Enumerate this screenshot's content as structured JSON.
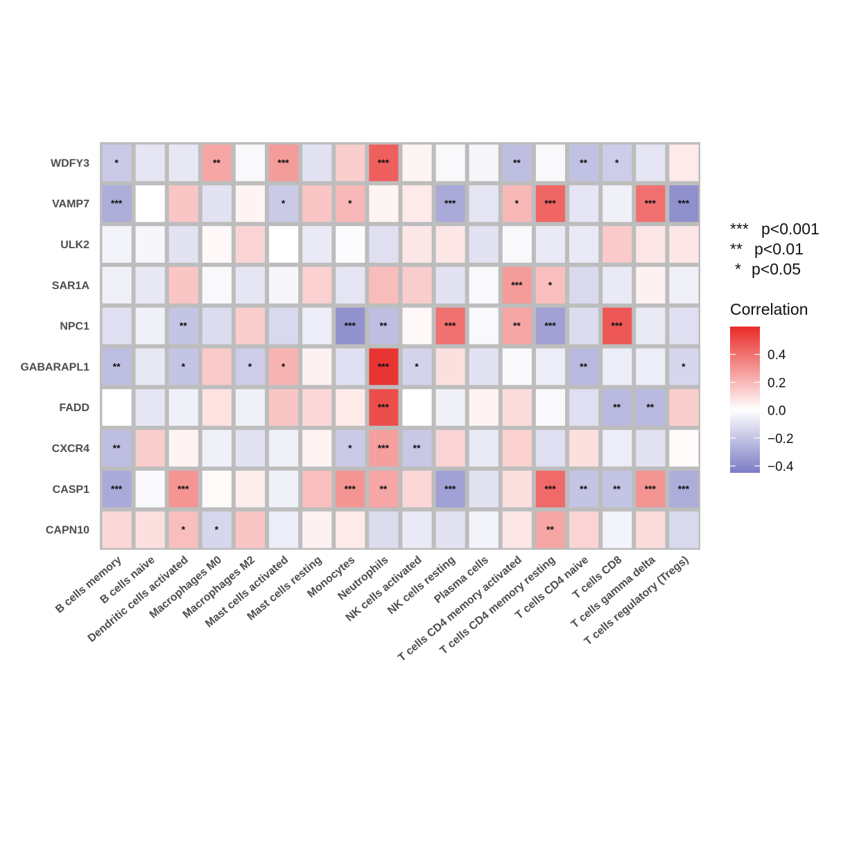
{
  "chart_data": {
    "type": "heatmap",
    "title": "",
    "xlabel": "",
    "ylabel": "",
    "rows": [
      "WDFY3",
      "VAMP7",
      "ULK2",
      "SAR1A",
      "NPC1",
      "GABARAPL1",
      "FADD",
      "CXCR4",
      "CASP1",
      "CAPN10"
    ],
    "columns": [
      "B cells memory",
      "B cells naive",
      "Dendritic cells activated",
      "Macrophages M0",
      "Macrophages M2",
      "Mast cells activated",
      "Mast cells resting",
      "Monocytes",
      "Neutrophils",
      "NK cells activated",
      "NK cells resting",
      "Plasma cells",
      "T cells CD4 memory activated",
      "T cells CD4 memory resting",
      "T cells CD4 naive",
      "T cells CD8",
      "T cells gamma delta",
      "T cells regulatory (Tregs)"
    ],
    "values": [
      [
        -0.18,
        -0.09,
        -0.08,
        0.25,
        -0.02,
        0.28,
        -0.1,
        0.14,
        0.45,
        0.03,
        -0.02,
        -0.03,
        -0.22,
        -0.02,
        -0.21,
        -0.17,
        -0.09,
        0.06
      ],
      [
        -0.28,
        0.0,
        0.16,
        -0.1,
        0.03,
        -0.18,
        0.16,
        0.2,
        0.03,
        0.06,
        -0.29,
        -0.09,
        0.2,
        0.43,
        -0.09,
        -0.05,
        0.4,
        -0.38
      ],
      [
        -0.04,
        -0.03,
        -0.1,
        0.02,
        0.12,
        0.0,
        -0.07,
        -0.01,
        -0.11,
        0.07,
        0.07,
        -0.1,
        -0.02,
        -0.07,
        -0.07,
        0.15,
        0.07,
        0.07
      ],
      [
        -0.05,
        -0.08,
        0.16,
        -0.02,
        -0.09,
        -0.03,
        0.13,
        -0.09,
        0.19,
        0.14,
        -0.1,
        -0.02,
        0.28,
        0.18,
        -0.13,
        -0.07,
        0.04,
        -0.05
      ],
      [
        -0.11,
        -0.05,
        -0.2,
        -0.12,
        0.14,
        -0.13,
        -0.06,
        -0.37,
        -0.22,
        0.02,
        0.4,
        -0.02,
        0.25,
        -0.32,
        -0.12,
        0.47,
        -0.07,
        -0.11
      ],
      [
        -0.22,
        -0.08,
        -0.2,
        0.15,
        -0.17,
        0.21,
        0.04,
        -0.11,
        0.57,
        -0.15,
        0.09,
        -0.1,
        -0.02,
        -0.06,
        -0.24,
        -0.06,
        -0.06,
        -0.14
      ],
      [
        0.0,
        -0.09,
        -0.05,
        0.08,
        -0.05,
        0.16,
        0.11,
        0.06,
        0.5,
        0.0,
        -0.05,
        0.03,
        0.1,
        -0.02,
        -0.11,
        -0.24,
        -0.24,
        0.14
      ],
      [
        -0.22,
        0.14,
        0.03,
        -0.05,
        -0.1,
        -0.05,
        0.03,
        -0.18,
        0.27,
        -0.19,
        0.12,
        -0.07,
        0.13,
        -0.11,
        0.09,
        -0.06,
        -0.1,
        0.01
      ],
      [
        -0.29,
        -0.02,
        0.3,
        0.01,
        0.05,
        -0.05,
        0.18,
        0.3,
        0.25,
        0.11,
        -0.32,
        -0.1,
        0.09,
        0.42,
        -0.2,
        -0.2,
        0.3,
        -0.28
      ],
      [
        0.11,
        0.09,
        0.18,
        -0.14,
        0.16,
        -0.06,
        0.04,
        0.06,
        -0.12,
        -0.07,
        -0.1,
        -0.04,
        0.07,
        0.25,
        0.12,
        -0.04,
        0.1,
        -0.13
      ]
    ],
    "significance": [
      [
        "*",
        "",
        "",
        "**",
        "",
        "***",
        "",
        "",
        "***",
        "",
        "",
        "",
        "**",
        "",
        "**",
        "*",
        "",
        ""
      ],
      [
        "***",
        "",
        "",
        "",
        "",
        "*",
        "",
        "*",
        "",
        "",
        "***",
        "",
        "*",
        "***",
        "",
        "",
        "***",
        "***"
      ],
      [
        "",
        "",
        "",
        "",
        "",
        "",
        "",
        "",
        "",
        "",
        "",
        "",
        "",
        "",
        "",
        "",
        "",
        ""
      ],
      [
        "",
        "",
        "",
        "",
        "",
        "",
        "",
        "",
        "",
        "",
        "",
        "",
        "***",
        "*",
        "",
        "",
        "",
        ""
      ],
      [
        "",
        "",
        "**",
        "",
        "",
        "",
        "",
        "***",
        "**",
        "",
        "***",
        "",
        "**",
        "***",
        "",
        "***",
        "",
        ""
      ],
      [
        "**",
        "",
        "*",
        "",
        "*",
        "*",
        "",
        "",
        "***",
        "*",
        "",
        "",
        "",
        "",
        "**",
        "",
        "",
        "*"
      ],
      [
        "",
        "",
        "",
        "",
        "",
        "",
        "",
        "",
        "***",
        "",
        "",
        "",
        "",
        "",
        "",
        "**",
        "**",
        ""
      ],
      [
        "**",
        "",
        "",
        "",
        "",
        "",
        "",
        "*",
        "***",
        "**",
        "",
        "",
        "",
        "",
        "",
        "",
        "",
        ""
      ],
      [
        "***",
        "",
        "***",
        "",
        "",
        "",
        "",
        "***",
        "**",
        "",
        "***",
        "",
        "",
        "***",
        "**",
        "**",
        "***",
        "***"
      ],
      [
        "",
        "",
        "*",
        "*",
        "",
        "",
        "",
        "",
        "",
        "",
        "",
        "",
        "",
        "**",
        "",
        "",
        "",
        ""
      ]
    ],
    "color_scale": {
      "title": "Correlation",
      "low_color": "#7b7bc4",
      "mid_color": "#ffffff",
      "high_color": "#e82a27",
      "range": [
        -0.45,
        0.6
      ],
      "ticks": [
        0.4,
        0.2,
        0.0,
        -0.2,
        -0.4
      ],
      "tick_labels": [
        "0.4",
        "0.2",
        "0.0",
        "−0.2",
        "−0.4"
      ]
    },
    "significance_legend": [
      {
        "symbol": "***",
        "label": "p<0.001"
      },
      {
        "symbol": "**",
        "label": "p<0.01"
      },
      {
        "symbol": "*",
        "label": "p<0.05"
      }
    ],
    "legend_position": "right",
    "grid": false
  }
}
